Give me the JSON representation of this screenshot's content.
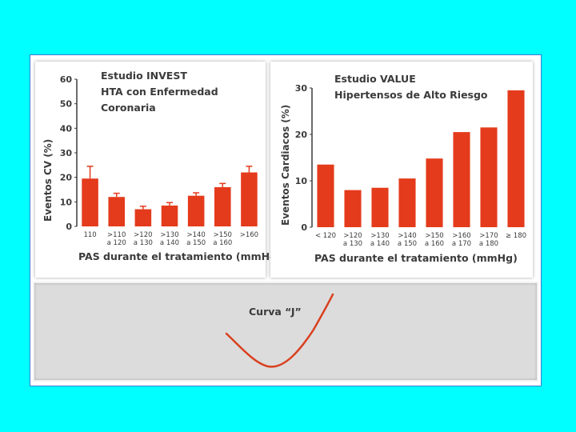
{
  "chart_data": [
    {
      "type": "bar",
      "title": "Estudio INVEST",
      "subtitle": "HTA con Enfermedad Coronaria",
      "xlabel": "PAS durante el tratamiento (mmHg)",
      "ylabel": "Eventos CV (%)",
      "ylim": [
        0,
        60
      ],
      "yticks": [
        0,
        10,
        20,
        30,
        40,
        50,
        60
      ],
      "categories": [
        [
          "110"
        ],
        [
          ">110",
          "a 120"
        ],
        [
          ">120",
          "a 130"
        ],
        [
          ">130",
          "a 140"
        ],
        [
          ">140",
          "a 150"
        ],
        [
          ">150",
          "a 160"
        ],
        [
          ">160"
        ]
      ],
      "values": [
        19.5,
        12,
        7,
        8.5,
        12.5,
        16,
        22
      ],
      "error_bars": [
        5,
        1.5,
        1.2,
        1.2,
        1.2,
        1.5,
        2.5
      ],
      "grid": false,
      "bar_color": "#E43B1C"
    },
    {
      "type": "bar",
      "title": "Estudio VALUE",
      "subtitle": "Hipertensos de Alto Riesgo",
      "xlabel": "PAS durante el tratamiento (mmHg)",
      "ylabel": "Eventos Cardiacos (%)",
      "ylim": [
        0,
        30
      ],
      "yticks": [
        0,
        10,
        20,
        30
      ],
      "categories": [
        [
          "< 120"
        ],
        [
          ">120",
          "a 130"
        ],
        [
          ">130",
          "a 140"
        ],
        [
          ">140",
          "a 150"
        ],
        [
          ">150",
          "a 160"
        ],
        [
          ">160",
          "a 170"
        ],
        [
          ">170",
          "a 180"
        ],
        [
          "≥ 180"
        ]
      ],
      "values": [
        13.5,
        8,
        8.5,
        10.5,
        14.8,
        20.5,
        21.5,
        29.5
      ],
      "grid": false,
      "bar_color": "#E43B1C"
    }
  ],
  "curve": {
    "label": "Curva “J”",
    "color": "#D9401F"
  },
  "colors": {
    "background": "#00FFFF",
    "axis": "#3b3b3b",
    "frame_border": "#3a7bd5"
  }
}
